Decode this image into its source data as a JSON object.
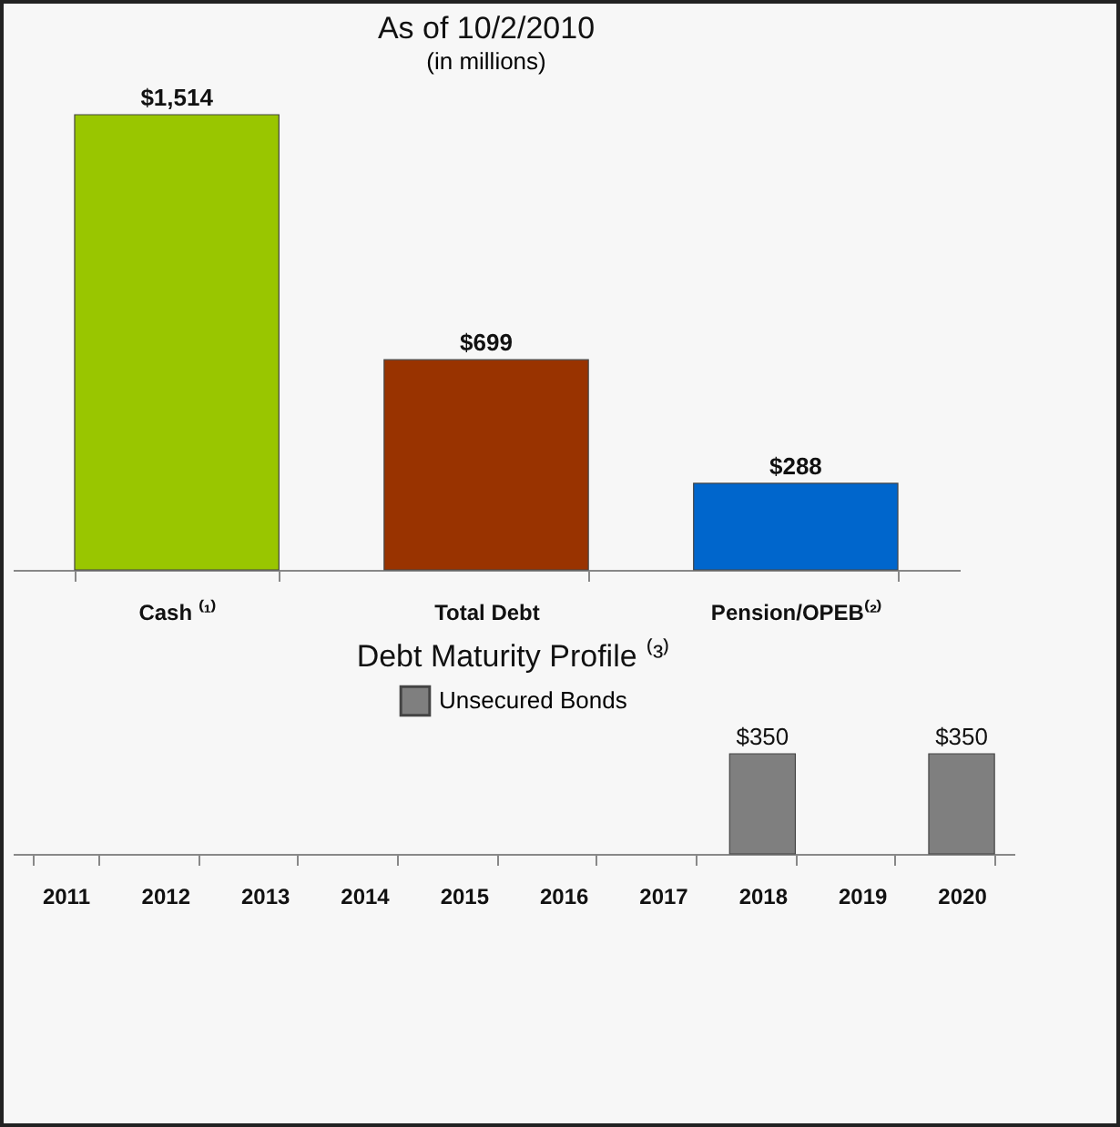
{
  "chart_data": [
    {
      "type": "bar",
      "title": "As of 10/2/2010",
      "subtitle": "(in millions)",
      "categories": [
        "Cash ⁽¹⁾",
        "Total Debt",
        "Pension/OPEB⁽²⁾"
      ],
      "values": [
        1514,
        699,
        288
      ],
      "colors": [
        "#99c600",
        "#993300",
        "#0066cc"
      ],
      "value_labels": [
        "$1,514",
        "$699",
        "$288"
      ]
    },
    {
      "type": "bar",
      "title": "Debt Maturity Profile ⁽³⁾",
      "categories": [
        "2011",
        "2012",
        "2013",
        "2014",
        "2015",
        "2016",
        "2017",
        "2018",
        "2019",
        "2020"
      ],
      "series": [
        {
          "name": "Unsecured Bonds",
          "color": "#7f7f7f",
          "values": [
            null,
            null,
            null,
            null,
            null,
            null,
            null,
            350,
            null,
            350
          ],
          "value_labels": [
            null,
            null,
            null,
            null,
            null,
            null,
            null,
            "$350",
            null,
            "$350"
          ]
        }
      ],
      "legend": "top"
    }
  ]
}
